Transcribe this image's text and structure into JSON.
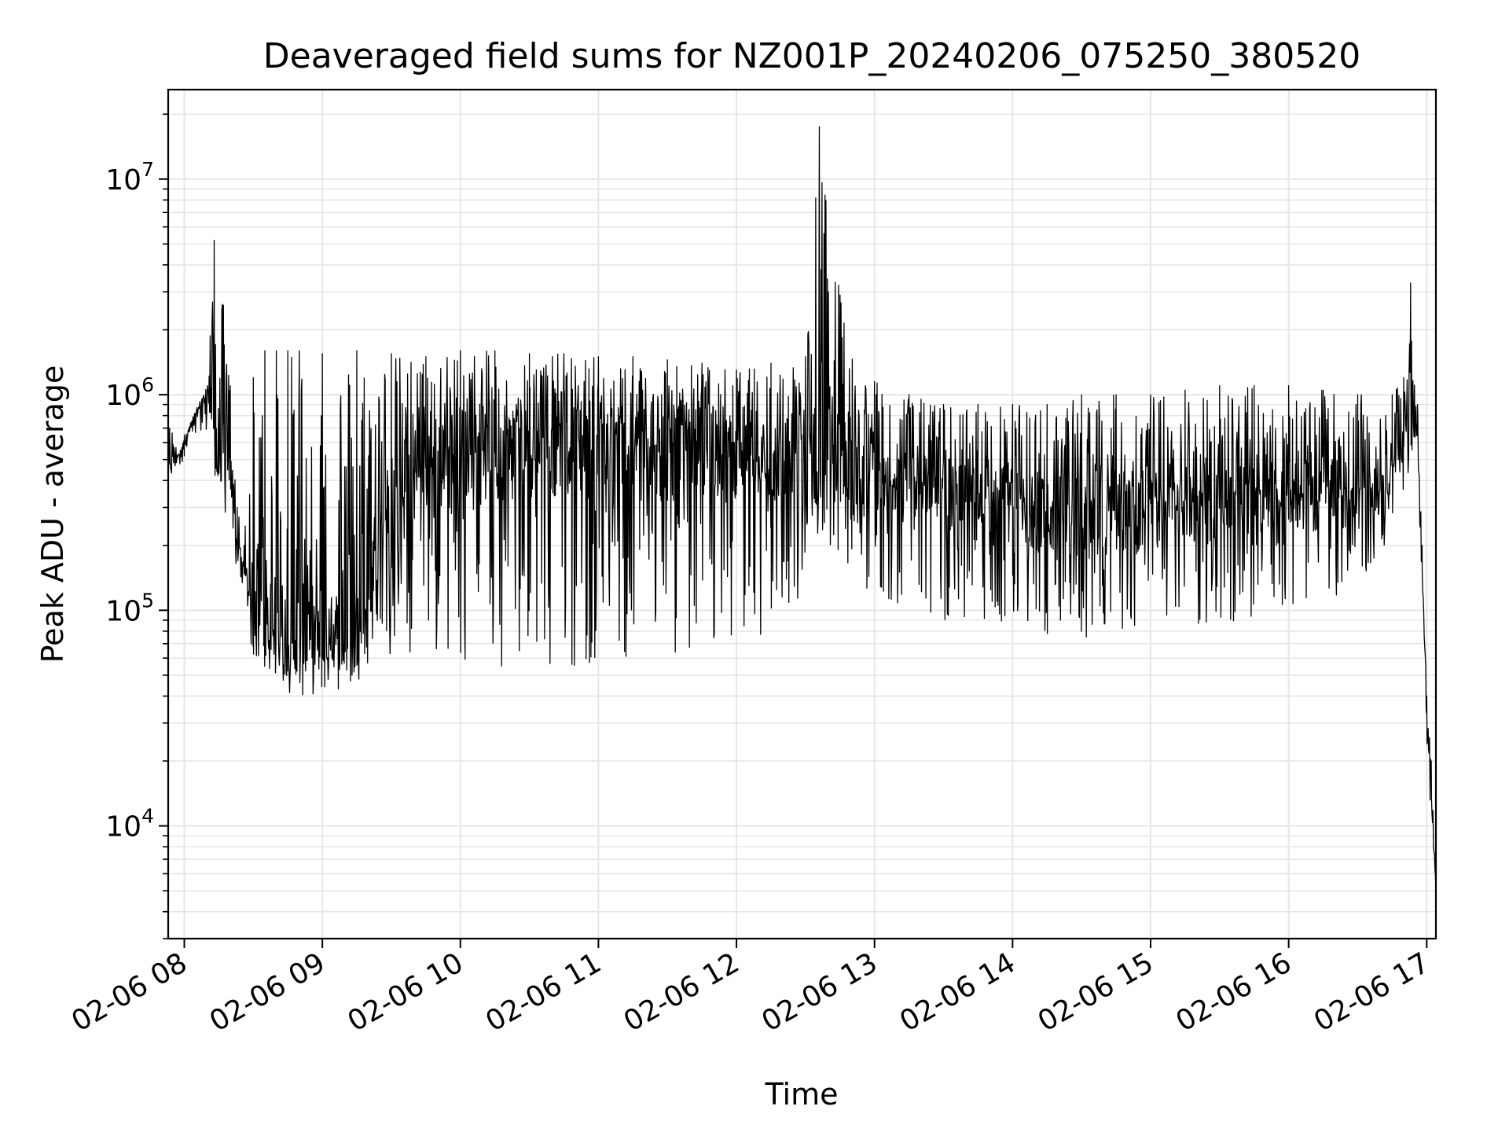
{
  "chart_data": {
    "type": "line",
    "title": "Deaveraged field sums for NZ001P_20240206_075250_380520",
    "xlabel": "Time",
    "ylabel": "Peak ADU - average",
    "yscale": "log",
    "ylim": [
      3000,
      26000000
    ],
    "xlim": [
      "2024-02-06 07:53",
      "2024-02-06 17:04"
    ],
    "grid": true,
    "line_color": "#000000",
    "x_ticks": [
      {
        "label": "02-06 08",
        "value": "2024-02-06 08:00"
      },
      {
        "label": "02-06 09",
        "value": "2024-02-06 09:00"
      },
      {
        "label": "02-06 10",
        "value": "2024-02-06 10:00"
      },
      {
        "label": "02-06 11",
        "value": "2024-02-06 11:00"
      },
      {
        "label": "02-06 12",
        "value": "2024-02-06 12:00"
      },
      {
        "label": "02-06 13",
        "value": "2024-02-06 13:00"
      },
      {
        "label": "02-06 14",
        "value": "2024-02-06 14:00"
      },
      {
        "label": "02-06 15",
        "value": "2024-02-06 15:00"
      },
      {
        "label": "02-06 16",
        "value": "2024-02-06 16:00"
      },
      {
        "label": "02-06 17",
        "value": "2024-02-06 17:00"
      }
    ],
    "y_ticks": [
      {
        "base": "10",
        "exp": "4",
        "value": 10000
      },
      {
        "base": "10",
        "exp": "5",
        "value": 100000
      },
      {
        "base": "10",
        "exp": "6",
        "value": 1000000
      },
      {
        "base": "10",
        "exp": "7",
        "value": 10000000
      }
    ],
    "series": [
      {
        "x": [
          "2024-02-06 07:53",
          "2024-02-06 08:00",
          "2024-02-06 08:10",
          "2024-02-06 08:13",
          "2024-02-06 08:17",
          "2024-02-06 08:20",
          "2024-02-06 08:23",
          "2024-02-06 08:26",
          "2024-02-06 08:30",
          "2024-02-06 08:35",
          "2024-02-06 08:40",
          "2024-02-06 08:45",
          "2024-02-06 08:50",
          "2024-02-06 09:00",
          "2024-02-06 09:15",
          "2024-02-06 09:30",
          "2024-02-06 09:45",
          "2024-02-06 10:00",
          "2024-02-06 10:15",
          "2024-02-06 10:30",
          "2024-02-06 10:45",
          "2024-02-06 11:00",
          "2024-02-06 11:15",
          "2024-02-06 11:30",
          "2024-02-06 11:45",
          "2024-02-06 12:00",
          "2024-02-06 12:15",
          "2024-02-06 12:30",
          "2024-02-06 12:36",
          "2024-02-06 12:45",
          "2024-02-06 13:00",
          "2024-02-06 13:15",
          "2024-02-06 13:30",
          "2024-02-06 13:45",
          "2024-02-06 14:00",
          "2024-02-06 14:15",
          "2024-02-06 14:30",
          "2024-02-06 14:45",
          "2024-02-06 15:00",
          "2024-02-06 15:15",
          "2024-02-06 15:30",
          "2024-02-06 15:45",
          "2024-02-06 16:00",
          "2024-02-06 16:15",
          "2024-02-06 16:30",
          "2024-02-06 16:45",
          "2024-02-06 16:50",
          "2024-02-06 16:53",
          "2024-02-06 16:56",
          "2024-02-06 16:58",
          "2024-02-06 17:00",
          "2024-02-06 17:02",
          "2024-02-06 17:04"
        ],
        "y": [
          450000,
          600000,
          1050000,
          650000,
          550000,
          450000,
          200000,
          150000,
          100000,
          90000,
          80000,
          75000,
          72000,
          75000,
          80000,
          300000,
          500000,
          500000,
          550000,
          600000,
          600000,
          550000,
          500000,
          550000,
          550000,
          550000,
          500000,
          550000,
          600000,
          550000,
          450000,
          400000,
          350000,
          320000,
          300000,
          280000,
          270000,
          290000,
          300000,
          310000,
          320000,
          330000,
          340000,
          350000,
          350000,
          450000,
          600000,
          1200000,
          600000,
          150000,
          35000,
          15000,
          5000
        ],
        "low": [
          400000,
          500000,
          700000,
          400000,
          300000,
          200000,
          150000,
          100000,
          60000,
          55000,
          50000,
          50000,
          50000,
          50000,
          55000,
          55000,
          55000,
          55000,
          55000,
          55000,
          55000,
          55000,
          60000,
          60000,
          70000,
          70000,
          80000,
          100000,
          200000,
          150000,
          120000,
          100000,
          90000,
          90000,
          80000,
          75000,
          75000,
          75000,
          80000,
          80000,
          85000,
          90000,
          100000,
          110000,
          130000,
          200000,
          300000,
          500000,
          200000,
          100000,
          25000,
          10000,
          5000
        ],
        "high": [
          750000,
          650000,
          1100000,
          5200000,
          2600000,
          1100000,
          300000,
          200000,
          1200000,
          1600000,
          1600000,
          1600000,
          1600000,
          1550000,
          1600000,
          1550000,
          1500000,
          1600000,
          1600000,
          1550000,
          1550000,
          1500000,
          1500000,
          1450000,
          1400000,
          1300000,
          1400000,
          1500000,
          17500000,
          2900000,
          1150000,
          1000000,
          900000,
          900000,
          900000,
          900000,
          1000000,
          1000000,
          1000000,
          1050000,
          1100000,
          1100000,
          1100000,
          1050000,
          1000000,
          1000000,
          1200000,
          3300000,
          900000,
          200000,
          40000,
          20000,
          6000
        ]
      }
    ]
  }
}
